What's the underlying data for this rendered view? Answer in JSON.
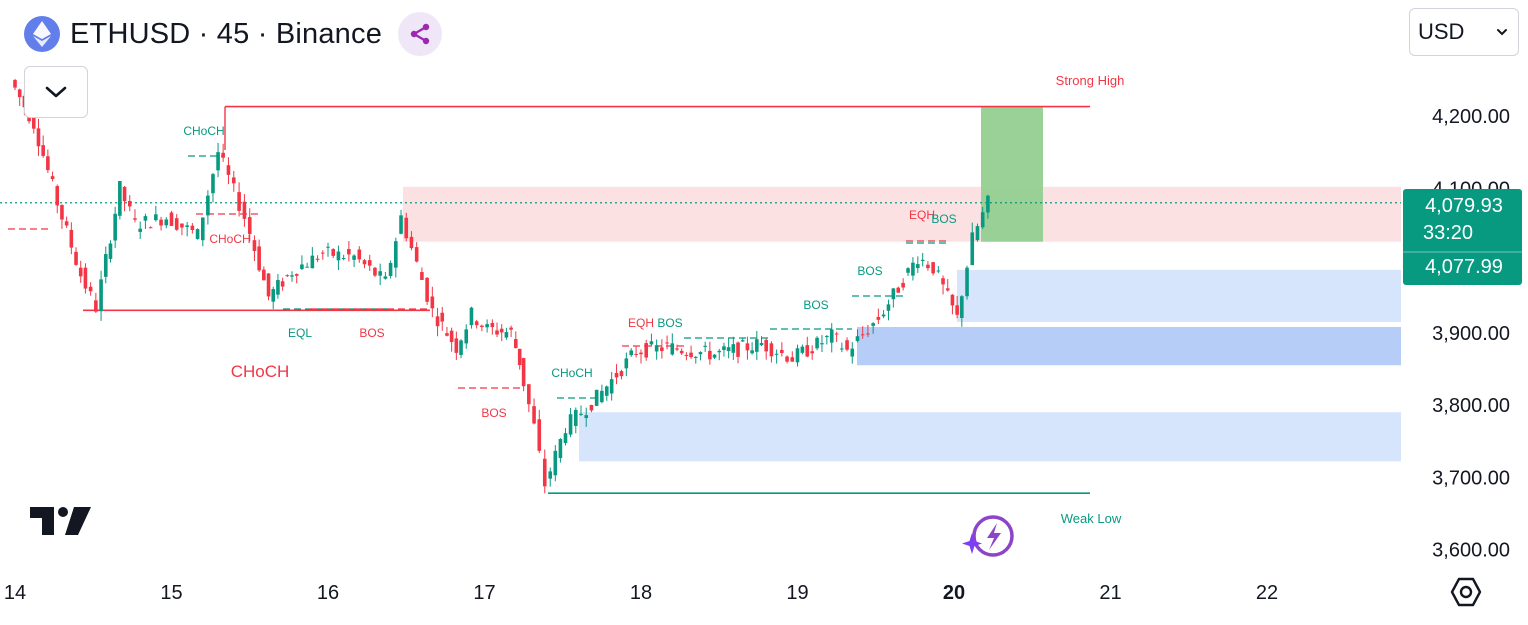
{
  "header": {
    "title": "ETHUSD · 45 · Binance",
    "currency": "USD"
  },
  "icons": [
    "ethereum-logo-icon",
    "share-icon",
    "chevron-down-icon",
    "tradingview-logo-icon",
    "lightning-icon",
    "settings-hexagon-icon"
  ],
  "colors": {
    "up": "#089981",
    "down": "#f23645",
    "demand_zone": "#d6e4fc",
    "demand_zone_dark": "#b5cdf7",
    "supply_zone": "#fce1e2",
    "target_zone": "#93cf91",
    "price_label": "#089981"
  },
  "price_label": {
    "price": "4,079.93",
    "countdown": "33:20",
    "second_price": "4,077.99"
  },
  "chart_data": {
    "type": "candlestick",
    "x_ticks": [
      "14",
      "15",
      "16",
      "17",
      "18",
      "19",
      "20",
      "21",
      "22"
    ],
    "y_ticks": [
      "4,200.00",
      "4,100.00",
      "3,900.00",
      "3,800.00",
      "3,700.00",
      "3,600.00"
    ],
    "ylim": [
      3580,
      4265
    ],
    "current_price": 4079.93,
    "ohlc_path": [
      [
        14.0,
        4250
      ],
      [
        14.15,
        4190
      ],
      [
        14.3,
        4080
      ],
      [
        14.45,
        3980
      ],
      [
        14.55,
        3935
      ],
      [
        14.7,
        4100
      ],
      [
        14.8,
        4050
      ],
      [
        15.0,
        4060
      ],
      [
        15.2,
        4035
      ],
      [
        15.33,
        4150
      ],
      [
        15.5,
        4060
      ],
      [
        15.65,
        3950
      ],
      [
        15.8,
        3985
      ],
      [
        16.0,
        4010
      ],
      [
        16.2,
        4005
      ],
      [
        16.4,
        3970
      ],
      [
        16.5,
        4060
      ],
      [
        16.7,
        3930
      ],
      [
        16.85,
        3880
      ],
      [
        16.95,
        3925
      ],
      [
        17.05,
        3905
      ],
      [
        17.2,
        3900
      ],
      [
        17.25,
        3860
      ],
      [
        17.35,
        3770
      ],
      [
        17.42,
        3690
      ],
      [
        17.55,
        3770
      ],
      [
        17.75,
        3810
      ],
      [
        18.0,
        3875
      ],
      [
        18.2,
        3880
      ],
      [
        18.5,
        3870
      ],
      [
        18.8,
        3885
      ],
      [
        19.0,
        3865
      ],
      [
        19.25,
        3895
      ],
      [
        19.35,
        3875
      ],
      [
        19.55,
        3920
      ],
      [
        19.8,
        4005
      ],
      [
        19.9,
        3990
      ],
      [
        20.05,
        3920
      ],
      [
        20.15,
        4030
      ],
      [
        20.25,
        4080
      ]
    ],
    "levels": [
      {
        "label": "Strong High",
        "price": 4213,
        "color": "#f23645"
      },
      {
        "label": "Weak Low",
        "price": 3678,
        "color": "#089981"
      },
      {
        "label": "CHoCH",
        "price": 3931,
        "color": "#f23645"
      }
    ],
    "zones": [
      {
        "type": "supply",
        "from": 4026,
        "to": 4102
      },
      {
        "type": "demand",
        "from": 3915,
        "to": 3987
      },
      {
        "type": "demand",
        "from": 3855,
        "to": 3908
      },
      {
        "type": "demand",
        "from": 3722,
        "to": 3790
      },
      {
        "type": "target",
        "from": 4026,
        "to": 4213
      }
    ],
    "annotations": [
      {
        "text": "CHoCH",
        "color": "#089981"
      },
      {
        "text": "CHoCH",
        "color": "#f23645"
      },
      {
        "text": "EQL",
        "color": "#089981"
      },
      {
        "text": "BOS",
        "color": "#f23645"
      },
      {
        "text": "CHoCH",
        "color": "#f23645"
      },
      {
        "text": "BOS",
        "color": "#f23645"
      },
      {
        "text": "CHoCH",
        "color": "#089981"
      },
      {
        "text": "EQH",
        "color": "#f23645"
      },
      {
        "text": "BOS",
        "color": "#089981"
      },
      {
        "text": "BOS",
        "color": "#089981"
      },
      {
        "text": "BOS",
        "color": "#089981"
      },
      {
        "text": "EQH",
        "color": "#f23645"
      },
      {
        "text": "BOS",
        "color": "#089981"
      },
      {
        "text": "Strong High",
        "color": "#f23645"
      },
      {
        "text": "Weak Low",
        "color": "#089981"
      }
    ]
  }
}
